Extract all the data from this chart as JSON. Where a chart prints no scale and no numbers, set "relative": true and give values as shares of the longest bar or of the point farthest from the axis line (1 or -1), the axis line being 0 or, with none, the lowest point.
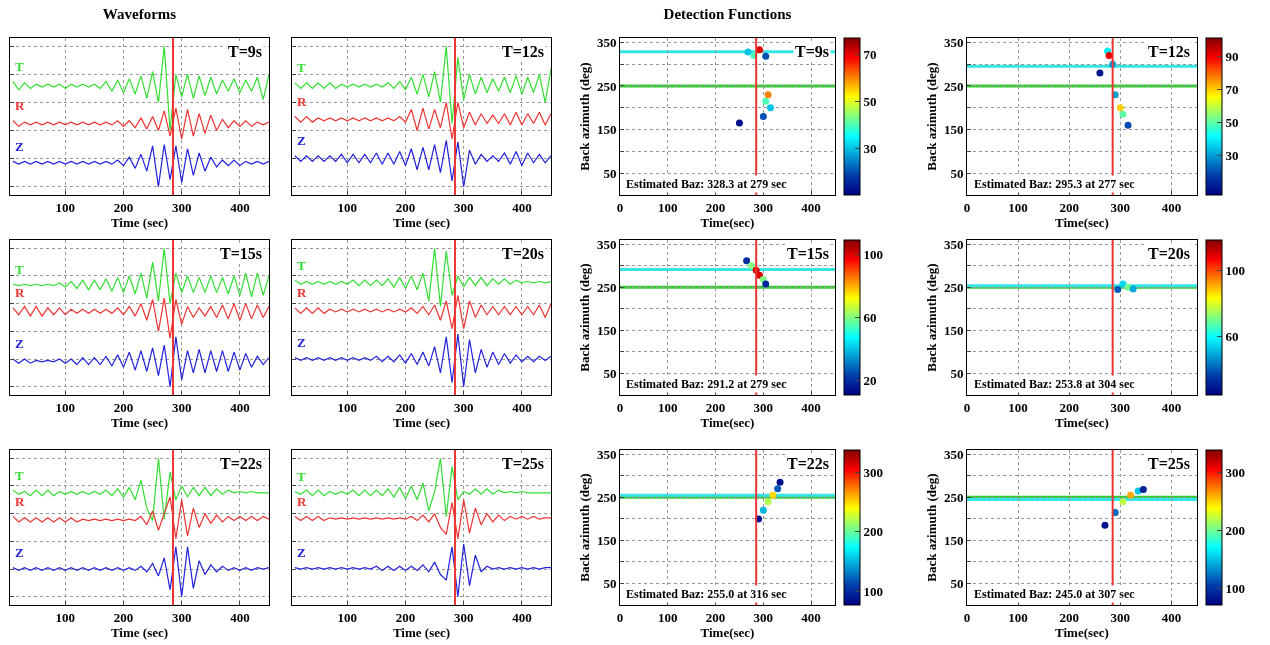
{
  "chart_data": [
    {
      "type": "line",
      "relative": true,
      "title": "Waveforms",
      "xlabel": "Time (sec)",
      "xlim": [
        5,
        450
      ],
      "xticks": [
        100,
        200,
        300,
        400
      ],
      "grid": true,
      "tick_labels": "x",
      "annotations": [
        "T=9s"
      ],
      "ref_lines": [
        {
          "axis": "x",
          "value": 285,
          "color": "#ee3333"
        }
      ],
      "x": [
        10,
        20,
        30,
        40,
        50,
        60,
        70,
        80,
        90,
        100,
        110,
        120,
        130,
        140,
        150,
        160,
        170,
        180,
        190,
        200,
        210,
        220,
        230,
        240,
        250,
        260,
        270,
        280,
        290,
        300,
        310,
        320,
        330,
        340,
        350,
        360,
        370,
        380,
        390,
        400,
        410,
        420,
        430,
        440,
        450
      ],
      "series": [
        {
          "name": "T",
          "color": "#33dd33",
          "values": [
            0.75,
            0.69,
            0.74,
            0.7,
            0.73,
            0.71,
            0.73,
            0.71,
            0.73,
            0.7,
            0.73,
            0.71,
            0.73,
            0.71,
            0.73,
            0.7,
            0.75,
            0.68,
            0.76,
            0.67,
            0.77,
            0.66,
            0.79,
            0.63,
            0.82,
            0.6,
            1.0,
            0.4,
            0.8,
            0.64,
            0.8,
            0.63,
            0.79,
            0.65,
            0.78,
            0.66,
            0.76,
            0.68,
            0.77,
            0.67,
            0.76,
            0.68,
            0.78,
            0.62,
            0.8
          ]
        },
        {
          "name": "R",
          "color": "#ee3333",
          "values": [
            0.47,
            0.43,
            0.46,
            0.44,
            0.46,
            0.44,
            0.46,
            0.44,
            0.46,
            0.44,
            0.46,
            0.44,
            0.46,
            0.44,
            0.46,
            0.44,
            0.46,
            0.44,
            0.47,
            0.43,
            0.47,
            0.42,
            0.49,
            0.41,
            0.5,
            0.4,
            0.54,
            0.36,
            0.56,
            0.34,
            0.55,
            0.36,
            0.52,
            0.38,
            0.51,
            0.4,
            0.48,
            0.42,
            0.47,
            0.43,
            0.47,
            0.43,
            0.46,
            0.44,
            0.46
          ]
        },
        {
          "name": "Z",
          "color": "#2222dd",
          "values": [
            0.18,
            0.16,
            0.18,
            0.16,
            0.18,
            0.16,
            0.18,
            0.16,
            0.18,
            0.16,
            0.18,
            0.16,
            0.18,
            0.16,
            0.18,
            0.16,
            0.18,
            0.16,
            0.19,
            0.15,
            0.21,
            0.13,
            0.23,
            0.11,
            0.29,
            0.0,
            0.3,
            0.05,
            0.29,
            0.03,
            0.27,
            0.08,
            0.24,
            0.11,
            0.21,
            0.14,
            0.19,
            0.15,
            0.19,
            0.15,
            0.18,
            0.16,
            0.18,
            0.16,
            0.18
          ]
        }
      ]
    },
    {
      "type": "line",
      "relative": true,
      "xlabel": "Time (sec)",
      "xlim": [
        5,
        450
      ],
      "xticks": [
        100,
        200,
        300,
        400
      ],
      "grid": true,
      "tick_labels": "x",
      "annotations": [
        "T=12s"
      ],
      "ref_lines": [
        {
          "axis": "x",
          "value": 285,
          "color": "#ee3333"
        }
      ],
      "x": [
        10,
        20,
        30,
        40,
        50,
        60,
        70,
        80,
        90,
        100,
        110,
        120,
        130,
        140,
        150,
        160,
        170,
        180,
        190,
        200,
        210,
        220,
        230,
        240,
        250,
        260,
        270,
        280,
        290,
        300,
        310,
        320,
        330,
        340,
        350,
        360,
        370,
        380,
        390,
        400,
        410,
        420,
        430,
        440,
        450
      ],
      "series": [
        {
          "name": "T",
          "color": "#33dd33",
          "values": [
            0.74,
            0.7,
            0.74,
            0.7,
            0.74,
            0.7,
            0.74,
            0.7,
            0.73,
            0.71,
            0.73,
            0.71,
            0.73,
            0.71,
            0.73,
            0.71,
            0.74,
            0.7,
            0.75,
            0.69,
            0.78,
            0.66,
            0.8,
            0.64,
            0.82,
            0.6,
            1.0,
            0.45,
            0.92,
            0.62,
            0.8,
            0.66,
            0.78,
            0.67,
            0.77,
            0.68,
            0.78,
            0.67,
            0.79,
            0.66,
            0.78,
            0.67,
            0.8,
            0.6,
            0.84
          ]
        },
        {
          "name": "R",
          "color": "#ee3333",
          "values": [
            0.5,
            0.46,
            0.5,
            0.46,
            0.49,
            0.47,
            0.49,
            0.47,
            0.49,
            0.47,
            0.49,
            0.47,
            0.49,
            0.47,
            0.49,
            0.47,
            0.49,
            0.47,
            0.5,
            0.46,
            0.55,
            0.4,
            0.56,
            0.41,
            0.55,
            0.42,
            0.6,
            0.34,
            0.6,
            0.42,
            0.53,
            0.44,
            0.52,
            0.45,
            0.51,
            0.45,
            0.52,
            0.44,
            0.53,
            0.44,
            0.52,
            0.45,
            0.53,
            0.44,
            0.52
          ]
        },
        {
          "name": "Z",
          "color": "#2222dd",
          "values": [
            0.22,
            0.18,
            0.22,
            0.18,
            0.22,
            0.18,
            0.22,
            0.18,
            0.23,
            0.17,
            0.23,
            0.17,
            0.23,
            0.17,
            0.24,
            0.16,
            0.24,
            0.16,
            0.25,
            0.15,
            0.27,
            0.12,
            0.28,
            0.12,
            0.3,
            0.1,
            0.33,
            0.04,
            0.32,
            0.0,
            0.26,
            0.16,
            0.23,
            0.18,
            0.22,
            0.18,
            0.24,
            0.16,
            0.25,
            0.15,
            0.24,
            0.17,
            0.23,
            0.17,
            0.22
          ]
        }
      ]
    },
    {
      "type": "scatter",
      "title": "Detection Functions",
      "xlabel": "Time(sec)",
      "ylabel": "Back azimuth (deg)",
      "xlim": [
        0,
        450
      ],
      "xticks": [
        0,
        100,
        200,
        300,
        400
      ],
      "ylim": [
        0,
        360
      ],
      "yticks": [
        50,
        {
          "value": 100,
          "label": null
        },
        150,
        {
          "value": 200,
          "label": null
        },
        250,
        {
          "value": 300,
          "label": null
        },
        350
      ],
      "grid": true,
      "marker": "circle",
      "clim": [
        10,
        77
      ],
      "cticks": [
        30,
        50,
        70
      ],
      "annotations": [
        "T=9s",
        "Estimated Baz: 328.3 at 279 sec"
      ],
      "ref_lines": [
        {
          "axis": "y",
          "value": 328.3,
          "color": "#33e5e5"
        },
        {
          "axis": "y",
          "value": 250,
          "color": "#33cc33"
        },
        {
          "axis": "x",
          "value": 285,
          "color": "#ee3333"
        }
      ],
      "x": [
        268,
        280,
        292,
        305,
        300,
        305,
        310,
        315,
        250
      ],
      "series": [
        {
          "values": [
            328,
            320,
            333,
            318,
            180,
            215,
            230,
            200,
            165
          ],
          "cvalues": [
            30,
            40,
            70,
            20,
            20,
            40,
            60,
            30,
            12
          ]
        }
      ]
    },
    {
      "type": "scatter",
      "xlabel": "Time(sec)",
      "ylabel": "Back azimuth (deg)",
      "xlim": [
        0,
        450
      ],
      "xticks": [
        0,
        100,
        200,
        300,
        400
      ],
      "ylim": [
        0,
        360
      ],
      "yticks": [
        50,
        {
          "value": 100,
          "label": null
        },
        150,
        {
          "value": 200,
          "label": null
        },
        250,
        {
          "value": 300,
          "label": null
        },
        350
      ],
      "grid": true,
      "marker": "circle",
      "clim": [
        6,
        101
      ],
      "cticks": [
        30,
        50,
        70,
        90
      ],
      "annotations": [
        "T=12s",
        "Estimated Baz: 295.3 at 277 sec"
      ],
      "ref_lines": [
        {
          "axis": "y",
          "value": 295.3,
          "color": "#33e5e5"
        },
        {
          "axis": "y",
          "value": 250,
          "color": "#33cc33"
        },
        {
          "axis": "x",
          "value": 285,
          "color": "#ee3333"
        }
      ],
      "x": [
        260,
        275,
        278,
        285,
        290,
        300,
        305,
        315
      ],
      "series": [
        {
          "values": [
            280,
            330,
            320,
            300,
            230,
            200,
            185,
            160
          ],
          "cvalues": [
            10,
            40,
            90,
            30,
            30,
            70,
            50,
            20
          ]
        }
      ]
    },
    {
      "type": "line",
      "relative": true,
      "xlabel": "Time (sec)",
      "xlim": [
        5,
        450
      ],
      "xticks": [
        100,
        200,
        300,
        400
      ],
      "grid": true,
      "tick_labels": "x",
      "annotations": [
        "T=15s"
      ],
      "ref_lines": [
        {
          "axis": "x",
          "value": 285,
          "color": "#ee3333"
        }
      ],
      "x": [
        10,
        20,
        30,
        40,
        50,
        60,
        70,
        80,
        90,
        100,
        110,
        120,
        130,
        140,
        150,
        160,
        170,
        180,
        190,
        200,
        210,
        220,
        230,
        240,
        250,
        260,
        270,
        280,
        290,
        300,
        310,
        320,
        330,
        340,
        350,
        360,
        370,
        380,
        390,
        400,
        410,
        420,
        430,
        440,
        450
      ],
      "series": [
        {
          "name": "T",
          "color": "#33dd33",
          "values": [
            0.74,
            0.73,
            0.74,
            0.73,
            0.74,
            0.73,
            0.74,
            0.73,
            0.75,
            0.72,
            0.76,
            0.71,
            0.77,
            0.7,
            0.77,
            0.7,
            0.78,
            0.69,
            0.79,
            0.68,
            0.8,
            0.67,
            0.82,
            0.64,
            0.9,
            0.62,
            1.0,
            0.6,
            0.82,
            0.68,
            0.8,
            0.68,
            0.79,
            0.68,
            0.8,
            0.68,
            0.79,
            0.67,
            0.8,
            0.66,
            0.82,
            0.65,
            0.82,
            0.66,
            0.8
          ]
        },
        {
          "name": "R",
          "color": "#ee3333",
          "values": [
            0.57,
            0.52,
            0.58,
            0.51,
            0.58,
            0.51,
            0.57,
            0.52,
            0.57,
            0.52,
            0.56,
            0.53,
            0.56,
            0.53,
            0.56,
            0.53,
            0.56,
            0.53,
            0.57,
            0.52,
            0.58,
            0.51,
            0.6,
            0.48,
            0.63,
            0.4,
            0.64,
            0.35,
            0.63,
            0.45,
            0.58,
            0.5,
            0.57,
            0.51,
            0.58,
            0.5,
            0.59,
            0.49,
            0.6,
            0.48,
            0.6,
            0.49,
            0.59,
            0.5,
            0.58
          ]
        },
        {
          "name": "Z",
          "color": "#2222dd",
          "values": [
            0.2,
            0.17,
            0.2,
            0.17,
            0.19,
            0.18,
            0.19,
            0.18,
            0.2,
            0.17,
            0.2,
            0.16,
            0.21,
            0.16,
            0.21,
            0.16,
            0.22,
            0.15,
            0.23,
            0.14,
            0.25,
            0.12,
            0.26,
            0.11,
            0.28,
            0.08,
            0.3,
            0.0,
            0.36,
            0.05,
            0.26,
            0.1,
            0.27,
            0.1,
            0.26,
            0.11,
            0.26,
            0.11,
            0.25,
            0.12,
            0.24,
            0.14,
            0.22,
            0.16,
            0.21
          ]
        }
      ]
    },
    {
      "type": "line",
      "relative": true,
      "xlabel": "Time (sec)",
      "xlim": [
        5,
        450
      ],
      "xticks": [
        100,
        200,
        300,
        400
      ],
      "grid": true,
      "tick_labels": "x",
      "annotations": [
        "T=20s"
      ],
      "ref_lines": [
        {
          "axis": "x",
          "value": 285,
          "color": "#ee3333"
        }
      ],
      "x": [
        10,
        20,
        30,
        40,
        50,
        60,
        70,
        80,
        90,
        100,
        110,
        120,
        130,
        140,
        150,
        160,
        170,
        180,
        190,
        200,
        210,
        220,
        230,
        240,
        250,
        260,
        270,
        280,
        290,
        300,
        310,
        320,
        330,
        340,
        350,
        360,
        370,
        380,
        390,
        400,
        410,
        420,
        430,
        440,
        450
      ],
      "series": [
        {
          "name": "T",
          "color": "#33dd33",
          "values": [
            0.77,
            0.74,
            0.76,
            0.74,
            0.76,
            0.74,
            0.76,
            0.74,
            0.76,
            0.74,
            0.77,
            0.73,
            0.77,
            0.73,
            0.77,
            0.73,
            0.78,
            0.72,
            0.79,
            0.71,
            0.8,
            0.7,
            0.82,
            0.62,
            1.0,
            0.58,
            0.98,
            0.66,
            0.8,
            0.72,
            0.79,
            0.73,
            0.79,
            0.73,
            0.78,
            0.74,
            0.78,
            0.74,
            0.77,
            0.75,
            0.76,
            0.75,
            0.76,
            0.75,
            0.76
          ]
        },
        {
          "name": "R",
          "color": "#ee3333",
          "values": [
            0.57,
            0.53,
            0.57,
            0.53,
            0.57,
            0.53,
            0.56,
            0.54,
            0.56,
            0.54,
            0.56,
            0.54,
            0.56,
            0.54,
            0.56,
            0.54,
            0.56,
            0.54,
            0.56,
            0.54,
            0.57,
            0.53,
            0.58,
            0.52,
            0.59,
            0.48,
            0.62,
            0.42,
            0.66,
            0.42,
            0.62,
            0.5,
            0.59,
            0.52,
            0.58,
            0.52,
            0.58,
            0.52,
            0.58,
            0.52,
            0.58,
            0.52,
            0.59,
            0.5,
            0.6
          ]
        },
        {
          "name": "Z",
          "color": "#2222dd",
          "values": [
            0.21,
            0.19,
            0.21,
            0.19,
            0.21,
            0.19,
            0.21,
            0.19,
            0.21,
            0.19,
            0.21,
            0.19,
            0.21,
            0.19,
            0.22,
            0.18,
            0.22,
            0.18,
            0.23,
            0.17,
            0.24,
            0.16,
            0.25,
            0.15,
            0.29,
            0.1,
            0.36,
            0.03,
            0.38,
            0.0,
            0.34,
            0.1,
            0.27,
            0.14,
            0.25,
            0.16,
            0.24,
            0.17,
            0.23,
            0.18,
            0.22,
            0.18,
            0.22,
            0.19,
            0.22
          ]
        }
      ]
    },
    {
      "type": "scatter",
      "xlabel": "Time(sec)",
      "ylabel": "Back azimuth (deg)",
      "xlim": [
        0,
        450
      ],
      "xticks": [
        0,
        100,
        200,
        300,
        400
      ],
      "ylim": [
        0,
        360
      ],
      "yticks": [
        50,
        {
          "value": 100,
          "label": null
        },
        150,
        {
          "value": 200,
          "label": null
        },
        250,
        {
          "value": 300,
          "label": null
        },
        350
      ],
      "grid": true,
      "marker": "circle",
      "clim": [
        11,
        109
      ],
      "cticks": [
        20,
        60,
        100
      ],
      "annotations": [
        "T=15s",
        "Estimated Baz: 291.2 at 279 sec"
      ],
      "ref_lines": [
        {
          "axis": "y",
          "value": 291.2,
          "color": "#33e5e5"
        },
        {
          "axis": "y",
          "value": 250,
          "color": "#33cc33"
        },
        {
          "axis": "x",
          "value": 285,
          "color": "#ee3333"
        }
      ],
      "x": [
        265,
        275,
        285,
        292,
        300,
        305
      ],
      "series": [
        {
          "values": [
            312,
            300,
            290,
            278,
            268,
            258
          ],
          "cvalues": [
            20,
            60,
            100,
            100,
            60,
            20
          ]
        }
      ]
    },
    {
      "type": "scatter",
      "xlabel": "Time(sec)",
      "ylabel": "Back azimuth (deg)",
      "xlim": [
        0,
        450
      ],
      "xticks": [
        0,
        100,
        200,
        300,
        400
      ],
      "ylim": [
        0,
        360
      ],
      "yticks": [
        50,
        {
          "value": 100,
          "label": null
        },
        150,
        {
          "value": 200,
          "label": null
        },
        250,
        {
          "value": 300,
          "label": null
        },
        350
      ],
      "grid": true,
      "marker": "circle",
      "clim": [
        25,
        118
      ],
      "cticks": [
        60,
        100
      ],
      "annotations": [
        "T=20s",
        "Estimated Baz: 253.8 at 304 sec"
      ],
      "ref_lines": [
        {
          "axis": "y",
          "value": 250,
          "color": "#33cc33"
        },
        {
          "axis": "y",
          "value": 253.8,
          "color": "#33e5e5"
        },
        {
          "axis": "x",
          "value": 285,
          "color": "#ee3333"
        }
      ],
      "x": [
        295,
        305,
        315,
        325
      ],
      "series": [
        {
          "values": [
            245,
            258,
            250,
            246
          ],
          "cvalues": [
            40,
            55,
            70,
            50
          ]
        }
      ]
    },
    {
      "type": "line",
      "relative": true,
      "xlabel": "Time (sec)",
      "xlim": [
        5,
        450
      ],
      "xticks": [
        100,
        200,
        300,
        400
      ],
      "grid": true,
      "tick_labels": "x",
      "annotations": [
        "T=22s"
      ],
      "ref_lines": [
        {
          "axis": "x",
          "value": 285,
          "color": "#ee3333"
        }
      ],
      "x": [
        10,
        20,
        30,
        40,
        50,
        60,
        70,
        80,
        90,
        100,
        110,
        120,
        130,
        140,
        150,
        160,
        170,
        180,
        190,
        200,
        210,
        220,
        230,
        240,
        250,
        260,
        270,
        280,
        290,
        300,
        310,
        320,
        330,
        340,
        350,
        360,
        370,
        380,
        390,
        400,
        410,
        420,
        430,
        440,
        450
      ],
      "series": [
        {
          "name": "T",
          "color": "#33dd33",
          "values": [
            0.77,
            0.74,
            0.76,
            0.73,
            0.77,
            0.73,
            0.77,
            0.73,
            0.76,
            0.74,
            0.76,
            0.74,
            0.76,
            0.74,
            0.76,
            0.74,
            0.77,
            0.73,
            0.78,
            0.72,
            0.79,
            0.7,
            0.84,
            0.64,
            0.55,
            1.0,
            0.56,
            0.9,
            0.7,
            0.8,
            0.72,
            0.79,
            0.73,
            0.79,
            0.73,
            0.78,
            0.74,
            0.77,
            0.75,
            0.76,
            0.75,
            0.76,
            0.75,
            0.75,
            0.75
          ]
        },
        {
          "name": "R",
          "color": "#ee3333",
          "values": [
            0.58,
            0.54,
            0.57,
            0.54,
            0.57,
            0.54,
            0.57,
            0.54,
            0.57,
            0.54,
            0.57,
            0.54,
            0.56,
            0.55,
            0.56,
            0.55,
            0.56,
            0.55,
            0.56,
            0.55,
            0.56,
            0.55,
            0.58,
            0.52,
            0.62,
            0.48,
            0.6,
            0.72,
            0.42,
            0.7,
            0.44,
            0.64,
            0.5,
            0.6,
            0.53,
            0.59,
            0.54,
            0.58,
            0.55,
            0.58,
            0.55,
            0.58,
            0.55,
            0.58,
            0.56
          ]
        },
        {
          "name": "Z",
          "color": "#2222dd",
          "values": [
            0.21,
            0.19,
            0.21,
            0.19,
            0.21,
            0.19,
            0.21,
            0.19,
            0.21,
            0.19,
            0.21,
            0.19,
            0.21,
            0.19,
            0.21,
            0.19,
            0.21,
            0.19,
            0.21,
            0.19,
            0.21,
            0.19,
            0.22,
            0.18,
            0.24,
            0.15,
            0.28,
            0.05,
            0.36,
            0.0,
            0.36,
            0.06,
            0.26,
            0.16,
            0.23,
            0.18,
            0.22,
            0.19,
            0.21,
            0.19,
            0.21,
            0.19,
            0.21,
            0.2,
            0.21
          ]
        }
      ]
    },
    {
      "type": "line",
      "relative": true,
      "xlabel": "Time (sec)",
      "xlim": [
        5,
        450
      ],
      "xticks": [
        100,
        200,
        300,
        400
      ],
      "grid": true,
      "tick_labels": "x",
      "annotations": [
        "T=25s"
      ],
      "ref_lines": [
        {
          "axis": "x",
          "value": 285,
          "color": "#ee3333"
        }
      ],
      "x": [
        10,
        20,
        30,
        40,
        50,
        60,
        70,
        80,
        90,
        100,
        110,
        120,
        130,
        140,
        150,
        160,
        170,
        180,
        190,
        200,
        210,
        220,
        230,
        240,
        250,
        260,
        270,
        280,
        290,
        300,
        310,
        320,
        330,
        340,
        350,
        360,
        370,
        380,
        390,
        400,
        410,
        420,
        430,
        440,
        450
      ],
      "series": [
        {
          "name": "T",
          "color": "#33dd33",
          "values": [
            0.76,
            0.74,
            0.77,
            0.73,
            0.77,
            0.73,
            0.76,
            0.74,
            0.76,
            0.74,
            0.77,
            0.73,
            0.77,
            0.73,
            0.77,
            0.73,
            0.78,
            0.72,
            0.79,
            0.71,
            0.8,
            0.7,
            0.82,
            0.62,
            0.76,
            1.0,
            0.58,
            0.94,
            0.7,
            0.76,
            0.74,
            0.78,
            0.74,
            0.78,
            0.74,
            0.77,
            0.75,
            0.76,
            0.75,
            0.76,
            0.75,
            0.75,
            0.75,
            0.75,
            0.75
          ]
        },
        {
          "name": "R",
          "color": "#ee3333",
          "values": [
            0.58,
            0.55,
            0.58,
            0.55,
            0.58,
            0.55,
            0.57,
            0.56,
            0.57,
            0.56,
            0.57,
            0.56,
            0.57,
            0.56,
            0.57,
            0.56,
            0.57,
            0.56,
            0.57,
            0.56,
            0.58,
            0.55,
            0.59,
            0.54,
            0.6,
            0.5,
            0.45,
            0.68,
            0.42,
            0.7,
            0.46,
            0.64,
            0.52,
            0.6,
            0.54,
            0.59,
            0.55,
            0.58,
            0.56,
            0.58,
            0.56,
            0.58,
            0.56,
            0.57,
            0.57
          ]
        },
        {
          "name": "Z",
          "color": "#2222dd",
          "values": [
            0.21,
            0.2,
            0.21,
            0.2,
            0.21,
            0.2,
            0.21,
            0.2,
            0.21,
            0.2,
            0.21,
            0.2,
            0.21,
            0.2,
            0.22,
            0.19,
            0.22,
            0.19,
            0.22,
            0.19,
            0.22,
            0.19,
            0.23,
            0.18,
            0.25,
            0.16,
            0.12,
            0.36,
            0.0,
            0.38,
            0.08,
            0.3,
            0.18,
            0.22,
            0.2,
            0.21,
            0.2,
            0.21,
            0.2,
            0.21,
            0.2,
            0.21,
            0.2,
            0.21,
            0.21
          ]
        }
      ]
    },
    {
      "type": "scatter",
      "xlabel": "Time(sec)",
      "ylabel": "Back azimuth (deg)",
      "xlim": [
        0,
        450
      ],
      "xticks": [
        0,
        100,
        200,
        300,
        400
      ],
      "ylim": [
        0,
        360
      ],
      "yticks": [
        50,
        {
          "value": 100,
          "label": null
        },
        150,
        {
          "value": 200,
          "label": null
        },
        250,
        {
          "value": 300,
          "label": null
        },
        350
      ],
      "grid": true,
      "marker": "circle",
      "clim": [
        77,
        337
      ],
      "cticks": [
        100,
        200,
        300
      ],
      "annotations": [
        "T=22s",
        "Estimated Baz: 255.0 at 316 sec"
      ],
      "ref_lines": [
        {
          "axis": "y",
          "value": 250,
          "color": "#33cc33"
        },
        {
          "axis": "y",
          "value": 255,
          "color": "#33e5e5"
        },
        {
          "axis": "x",
          "value": 285,
          "color": "#ee3333"
        }
      ],
      "x": [
        290,
        300,
        310,
        320,
        330,
        335
      ],
      "series": [
        {
          "values": [
            200,
            220,
            240,
            255,
            270,
            285
          ],
          "cvalues": [
            90,
            150,
            220,
            250,
            120,
            85
          ]
        }
      ]
    },
    {
      "type": "scatter",
      "xlabel": "Time(sec)",
      "ylabel": "Back azimuth (deg)",
      "xlim": [
        0,
        450
      ],
      "xticks": [
        0,
        100,
        200,
        300,
        400
      ],
      "ylim": [
        0,
        360
      ],
      "yticks": [
        50,
        {
          "value": 100,
          "label": null
        },
        150,
        {
          "value": 200,
          "label": null
        },
        250,
        {
          "value": 300,
          "label": null
        },
        350
      ],
      "grid": true,
      "marker": "circle",
      "clim": [
        71,
        338
      ],
      "cticks": [
        100,
        200,
        300
      ],
      "annotations": [
        "T=25s",
        "Estimated Baz: 245.0 at 307 sec"
      ],
      "ref_lines": [
        {
          "axis": "y",
          "value": 250,
          "color": "#33cc33"
        },
        {
          "axis": "y",
          "value": 245,
          "color": "#33e5e5"
        },
        {
          "axis": "x",
          "value": 285,
          "color": "#ee3333"
        }
      ],
      "x": [
        270,
        290,
        305,
        320,
        335,
        345
      ],
      "series": [
        {
          "values": [
            185,
            215,
            240,
            255,
            265,
            268
          ],
          "cvalues": [
            80,
            120,
            220,
            260,
            150,
            90
          ]
        }
      ]
    }
  ]
}
